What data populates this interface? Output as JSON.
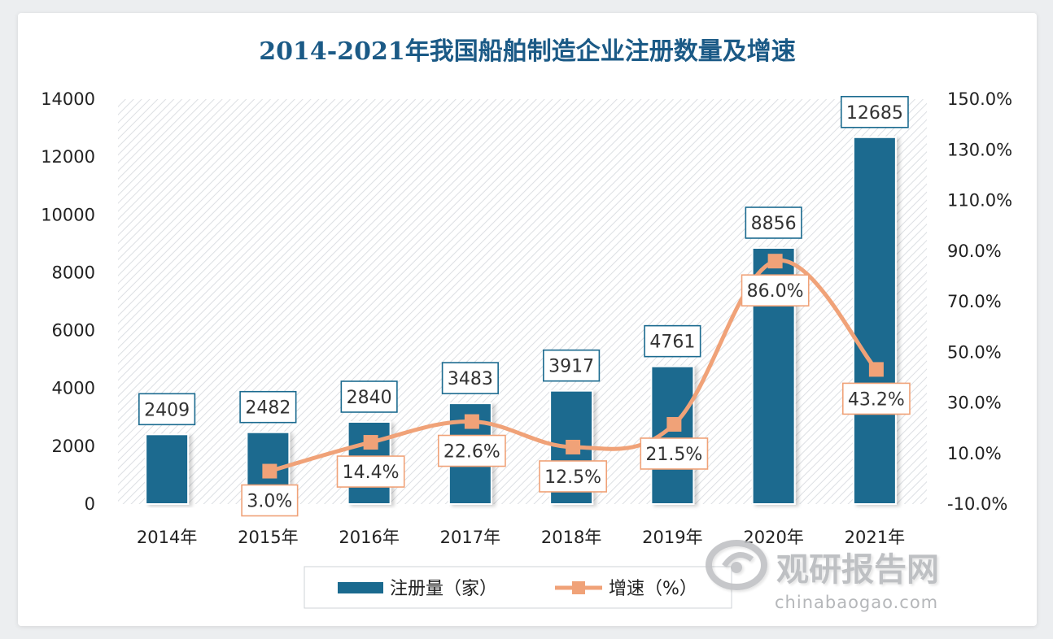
{
  "chart_data": {
    "type": "bar",
    "title": "2014-2021年我国船舶制造企业注册数量及增速",
    "categories": [
      "2014年",
      "2015年",
      "2016年",
      "2017年",
      "2018年",
      "2019年",
      "2020年",
      "2021年"
    ],
    "series": [
      {
        "name": "注册量（家）",
        "type": "bar",
        "axis": "left",
        "values": [
          2409,
          2482,
          2840,
          3483,
          3917,
          4761,
          8856,
          12685
        ],
        "labels": [
          "2409",
          "2482",
          "2840",
          "3483",
          "3917",
          "4761",
          "8856",
          "12685"
        ]
      },
      {
        "name": "增速（%）",
        "type": "line",
        "axis": "right",
        "values": [
          null,
          3.0,
          14.4,
          22.6,
          12.5,
          21.5,
          86.0,
          43.2
        ],
        "labels": [
          "",
          "3.0%",
          "14.4%",
          "22.6%",
          "12.5%",
          "21.5%",
          "86.0%",
          "43.2%"
        ]
      }
    ],
    "y_left": {
      "range": [
        0,
        14000
      ],
      "ticks": [
        "0",
        "2000",
        "4000",
        "6000",
        "8000",
        "10000",
        "12000",
        "14000"
      ]
    },
    "y_right": {
      "range": [
        -10,
        150
      ],
      "ticks": [
        "-10.0%",
        "10.0%",
        "30.0%",
        "50.0%",
        "70.0%",
        "90.0%",
        "110.0%",
        "130.0%",
        "150.0%"
      ]
    },
    "grid": false,
    "legend_position": "bottom",
    "colors": {
      "bar": "#1a6a8f",
      "line": "#f0a278",
      "title": "#1b5a86",
      "label_border_bar": "#1a6a8f",
      "label_border_line": "#f0a278"
    }
  },
  "watermark": {
    "brand": "观研报告网",
    "domain": "chinabaogao.com"
  }
}
